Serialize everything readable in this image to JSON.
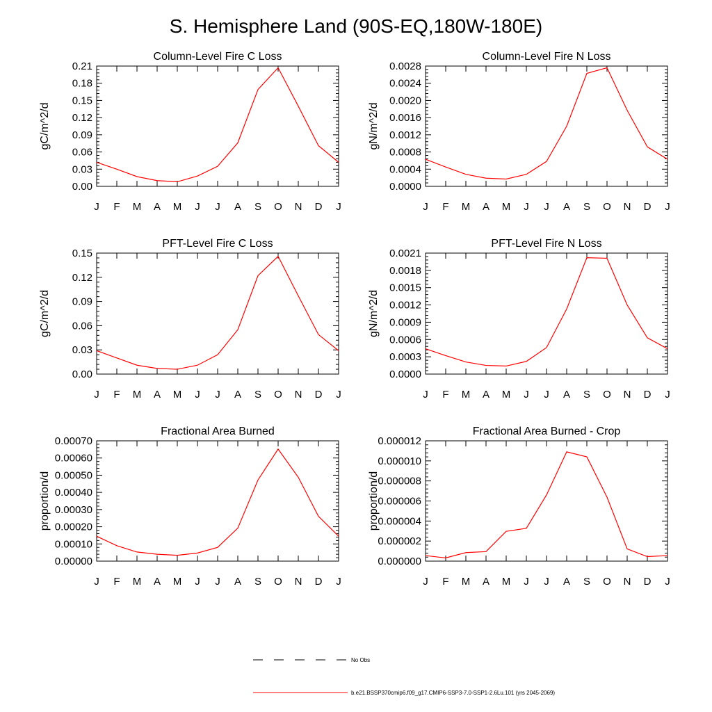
{
  "title": "S. Hemisphere Land (90S-EQ,180W-180E)",
  "legend": {
    "items": [
      {
        "label": "No Obs",
        "color": "#000000",
        "style": "dashed"
      },
      {
        "label": "b.e21.BSSP370cmip6.f09_g17.CMIP6-SSP3-7.0-SSP1-2.6Lu.101 (yrs 2045-2069)",
        "color": "#ff0000",
        "style": "solid"
      }
    ]
  },
  "chart_data": [
    {
      "type": "line",
      "title": "Column-Level Fire C Loss",
      "ylabel": "gC/m^2/d",
      "categories": [
        "J",
        "F",
        "M",
        "A",
        "M",
        "J",
        "J",
        "A",
        "S",
        "O",
        "N",
        "D",
        "J"
      ],
      "ylim": [
        0,
        0.21
      ],
      "yticks": [
        "0.00",
        "0.03",
        "0.06",
        "0.09",
        "0.12",
        "0.15",
        "0.18",
        "0.21"
      ],
      "series": [
        {
          "color": "#ff0000",
          "values": [
            0.042,
            0.03,
            0.017,
            0.01,
            0.008,
            0.018,
            0.035,
            0.076,
            0.169,
            0.207,
            0.14,
            0.071,
            0.042
          ]
        }
      ]
    },
    {
      "type": "line",
      "title": "Column-Level Fire N Loss",
      "ylabel": "gN/m^2/d",
      "categories": [
        "J",
        "F",
        "M",
        "A",
        "M",
        "J",
        "J",
        "A",
        "S",
        "O",
        "N",
        "D",
        "J"
      ],
      "ylim": [
        0,
        0.0028
      ],
      "yticks": [
        "0.0000",
        "0.0004",
        "0.0008",
        "0.0012",
        "0.0016",
        "0.0020",
        "0.0024",
        "0.0028"
      ],
      "series": [
        {
          "color": "#ff0000",
          "values": [
            0.00063,
            0.00045,
            0.00028,
            0.00019,
            0.00017,
            0.00028,
            0.00058,
            0.0014,
            0.00263,
            0.00276,
            0.00177,
            0.00092,
            0.00063
          ]
        }
      ]
    },
    {
      "type": "line",
      "title": "PFT-Level Fire C Loss",
      "ylabel": "gC/m^2/d",
      "categories": [
        "J",
        "F",
        "M",
        "A",
        "M",
        "J",
        "J",
        "A",
        "S",
        "O",
        "N",
        "D",
        "J"
      ],
      "ylim": [
        0,
        0.15
      ],
      "yticks": [
        "0.00",
        "0.03",
        "0.06",
        "0.09",
        "0.12",
        "0.15"
      ],
      "series": [
        {
          "color": "#ff0000",
          "values": [
            0.029,
            0.02,
            0.011,
            0.007,
            0.006,
            0.011,
            0.024,
            0.055,
            0.122,
            0.146,
            0.097,
            0.049,
            0.029
          ]
        }
      ]
    },
    {
      "type": "line",
      "title": "PFT-Level Fire N Loss",
      "ylabel": "gN/m^2/d",
      "categories": [
        "J",
        "F",
        "M",
        "A",
        "M",
        "J",
        "J",
        "A",
        "S",
        "O",
        "N",
        "D",
        "J"
      ],
      "ylim": [
        0,
        0.0021
      ],
      "yticks": [
        "0.0000",
        "0.0003",
        "0.0006",
        "0.0009",
        "0.0012",
        "0.0015",
        "0.0018",
        "0.0021"
      ],
      "series": [
        {
          "color": "#ff0000",
          "values": [
            0.00044,
            0.00032,
            0.00021,
            0.00015,
            0.00014,
            0.00022,
            0.00046,
            0.00113,
            0.00202,
            0.00201,
            0.0012,
            0.00063,
            0.00044
          ]
        }
      ]
    },
    {
      "type": "line",
      "title": "Fractional Area Burned",
      "ylabel": "proportion/d",
      "categories": [
        "J",
        "F",
        "M",
        "A",
        "M",
        "J",
        "J",
        "A",
        "S",
        "O",
        "N",
        "D",
        "J"
      ],
      "ylim": [
        0,
        0.0007
      ],
      "yticks": [
        "0.00000",
        "0.00010",
        "0.00020",
        "0.00030",
        "0.00040",
        "0.00050",
        "0.00060",
        "0.00070"
      ],
      "series": [
        {
          "color": "#ff0000",
          "values": [
            0.000145,
            9e-05,
            5.3e-05,
            4e-05,
            3.4e-05,
            4.7e-05,
            8e-05,
            0.000192,
            0.000472,
            0.000652,
            0.000488,
            0.000261,
            0.000145
          ]
        }
      ]
    },
    {
      "type": "line",
      "title": "Fractional Area Burned - Crop",
      "ylabel": "proportion/d",
      "categories": [
        "J",
        "F",
        "M",
        "A",
        "M",
        "J",
        "J",
        "A",
        "S",
        "O",
        "N",
        "D",
        "J"
      ],
      "ylim": [
        0,
        1.2e-05
      ],
      "yticks": [
        "0.000000",
        "0.000002",
        "0.000004",
        "0.000006",
        "0.000008",
        "0.000010",
        "0.000012"
      ],
      "series": [
        {
          "color": "#ff0000",
          "values": [
            5.5e-07,
            3.2e-07,
            8.5e-07,
            9.5e-07,
            2.97e-06,
            3.27e-06,
            6.6e-06,
            1.09e-05,
            1.04e-05,
            6.38e-06,
            1.22e-06,
            4.5e-07,
            5.5e-07
          ]
        }
      ]
    }
  ]
}
